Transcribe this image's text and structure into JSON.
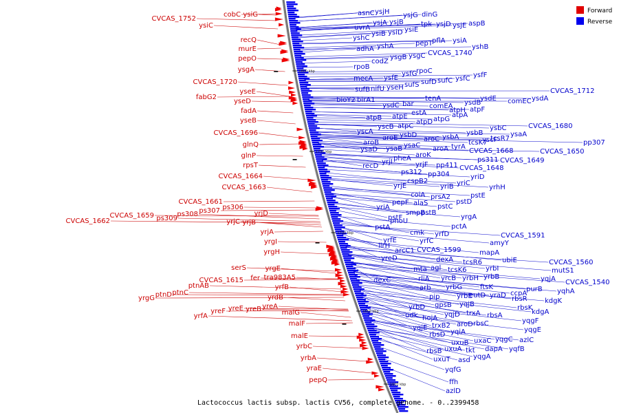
{
  "caption": "Lactococcus lactis subsp. lactis CV56, complete genome. - 0..2399458",
  "legend": [
    {
      "name": "Forward",
      "color": "#e00000"
    },
    {
      "name": "Reverse",
      "color": "#0000ee"
    }
  ],
  "ticks": [
    "1800 kbp",
    "1750 kbp",
    "1700 kbp",
    "1650 kbp",
    "1600 kbp"
  ],
  "forward_labels": [
    "cobC",
    "ysiG",
    "CVCAS_1752",
    "ysiC",
    "recQ",
    "murE",
    "pepO",
    "ysgA",
    "CVCAS_1720",
    "yseE",
    "fabG2",
    "yseD",
    "fadA",
    "yseB",
    "CVCAS_1696",
    "glnQ",
    "glnP",
    "rpsT",
    "CVCAS_1664",
    "CVCAS_1663",
    "CVCAS_1661",
    "CVCAS_1659",
    "CVCAS_1662",
    "ps309",
    "ps308",
    "ps307",
    "ps306",
    "yrjD",
    "yrjC",
    "yrjB",
    "yrjA",
    "yrgI",
    "yrgH",
    "serS",
    "yrgE",
    "CVCAS_1615",
    "fer",
    "tra983A5",
    "ptnAB",
    "yrfB",
    "yrgG",
    "ptnD",
    "ptnC",
    "yrdB",
    "yrfA",
    "yreF",
    "yreE",
    "yreB",
    "yreA",
    "malG",
    "malF",
    "malE",
    "yrbC",
    "yrbA",
    "yraE",
    "pepQ"
  ],
  "reverse_labels": [
    "asnC",
    "ysjH",
    "ysjG",
    "dinG",
    "uvrA",
    "ysjA",
    "ysjB",
    "tpk",
    "ysjD",
    "ysjE",
    "aspB",
    "ysiE",
    "yshC",
    "ysiB",
    "ysiD",
    "pepT",
    "pflA",
    "ysiA",
    "adhA",
    "yshA",
    "yshB",
    "ysgB",
    "ysgC",
    "CVCAS_1740",
    "rpoB",
    "codZ",
    "mecA",
    "ysfE",
    "ysfG",
    "rpoC",
    "ysfC",
    "ysfF",
    "sufB",
    "nifU",
    "yseH",
    "sufS",
    "sufD",
    "sufC",
    "CVCAS_1712",
    "bioY2",
    "birA1",
    "ysdC",
    "bar",
    "tenA",
    "ysdB",
    "ysdE",
    "comEA",
    "comEC",
    "ysdA",
    "atpB",
    "atpE",
    "estA",
    "atpH",
    "atpF",
    "atpD",
    "atpG",
    "atpA",
    "yscA",
    "yscB",
    "atpC",
    "CVCAS_1680",
    "aroB",
    "aroE",
    "ysbD",
    "ysbB",
    "ysbC",
    "yscF",
    "aroC",
    "ysbA",
    "tcsK7",
    "tcsR7",
    "ysaA",
    "ysaD",
    "ysaB",
    "ysaC",
    "tyrA",
    "aroA",
    "aroK",
    "CVCAS_1668",
    "CVCAS_1650",
    "pp307",
    "recD",
    "yrjI",
    "pheA",
    "yrjF",
    "ps311",
    "CVCAS_1649",
    "pp411",
    "pp304",
    "CVCAS_1648",
    "ps312",
    "yrjE",
    "cspB2",
    "yriD",
    "yriC",
    "yriB",
    "yrhH",
    "coiA",
    "prsA2",
    "pstE",
    "yriA",
    "pepF",
    "alaS",
    "pstD",
    "pstF",
    "smpB",
    "pstC",
    "pstB",
    "pstA",
    "phoU",
    "yrgA",
    "pctA",
    "yrfE",
    "cmk",
    "yrfD",
    "llrH",
    "yrfC",
    "arcC1",
    "CVCAS_1599",
    "CVCAS_1591",
    "yreD",
    "amyY",
    "mapA",
    "dexA",
    "tcsR6",
    "ubiE",
    "mta",
    "agl",
    "tcsK6",
    "yrbI",
    "dexC",
    "rliA",
    "yrcB",
    "yrbH",
    "yrbB",
    "CVCAS_1560",
    "mutS1",
    "arb",
    "yrbG",
    "ftsK",
    "pip",
    "yrbE",
    "eutD",
    "yraD",
    "ccpA",
    "yqjA",
    "yrbD",
    "gpsB",
    "yqjB",
    "rbsR",
    "CVCAS_1540",
    "purB",
    "yqhA",
    "udk",
    "hojA",
    "yqjD",
    "trxA",
    "rbsA",
    "rbsK",
    "kdgK",
    "yqjE",
    "trxB2",
    "aroD",
    "rbsC",
    "kdgA",
    "rbsD",
    "yqiA",
    "yqgF",
    "uxuB",
    "uxaC",
    "yqgC",
    "yqgE",
    "rbsB",
    "uxuA",
    "tkt",
    "azlC",
    "uxuT",
    "dapA",
    "yqfB",
    "asd",
    "yqgA",
    "yqfG",
    "ffh",
    "azlD"
  ]
}
